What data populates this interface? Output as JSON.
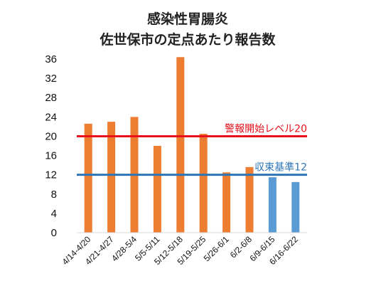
{
  "chart_data": {
    "type": "bar",
    "title": "感染性胃腸炎",
    "subtitle": "佐世保市の定点あたり報告数",
    "xlabel": "",
    "ylabel": "",
    "ylim": [
      0,
      36
    ],
    "yticks": [
      0,
      4,
      8,
      12,
      16,
      20,
      24,
      28,
      32,
      36
    ],
    "grid": false,
    "categories": [
      "4/14-4/20",
      "4/21-4/27",
      "4/28-5/4",
      "5/5-5/11",
      "5/12-5/18",
      "5/19-5/25",
      "5/26-6/1",
      "6/2-6/8",
      "6/9-6/15",
      "6/16-6/22"
    ],
    "values": [
      22.6,
      23.0,
      24.0,
      18.0,
      36.4,
      20.5,
      12.5,
      13.6,
      11.5,
      10.5
    ],
    "bar_colors": [
      "#ed7d31",
      "#ed7d31",
      "#ed7d31",
      "#ed7d31",
      "#ed7d31",
      "#ed7d31",
      "#ed7d31",
      "#ed7d31",
      "#5b9bd5",
      "#5b9bd5"
    ],
    "reference_lines": [
      {
        "label": "警報開始レベル20",
        "value": 20,
        "color": "#e8101b"
      },
      {
        "label": "収束基準12",
        "value": 12,
        "color": "#2e75b6"
      }
    ]
  }
}
